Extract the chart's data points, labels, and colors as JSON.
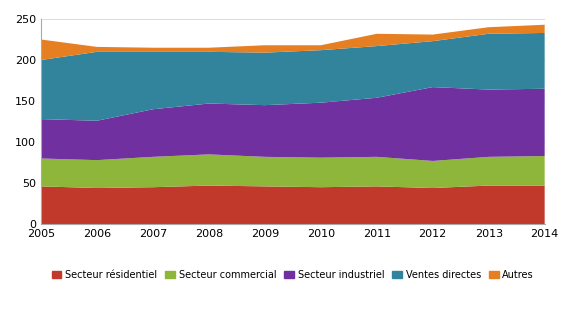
{
  "years": [
    2005,
    2006,
    2007,
    2008,
    2009,
    2010,
    2011,
    2012,
    2013,
    2014
  ],
  "secteur_residentiel": [
    46,
    44,
    45,
    47,
    46,
    45,
    46,
    44,
    47,
    47
  ],
  "secteur_commercial": [
    34,
    34,
    37,
    38,
    36,
    36,
    36,
    33,
    35,
    36
  ],
  "secteur_industriel": [
    48,
    48,
    58,
    62,
    63,
    67,
    72,
    90,
    82,
    82
  ],
  "ventes_directes": [
    72,
    84,
    70,
    63,
    64,
    64,
    63,
    56,
    68,
    68
  ],
  "autres": [
    25,
    6,
    5,
    5,
    9,
    6,
    15,
    8,
    8,
    10
  ],
  "colors": {
    "secteur_residentiel": "#c0392b",
    "secteur_commercial": "#8db63a",
    "secteur_industriel": "#7030a0",
    "ventes_directes": "#31849b",
    "autres": "#e67e22"
  },
  "labels": {
    "secteur_residentiel": "Secteur résidentiel",
    "secteur_commercial": "Secteur commercial",
    "secteur_industriel": "Secteur industriel",
    "ventes_directes": "Ventes directes",
    "autres": "Autres"
  },
  "ylim": [
    0,
    250
  ],
  "yticks": [
    0,
    50,
    100,
    150,
    200,
    250
  ],
  "background_color": "#ffffff"
}
